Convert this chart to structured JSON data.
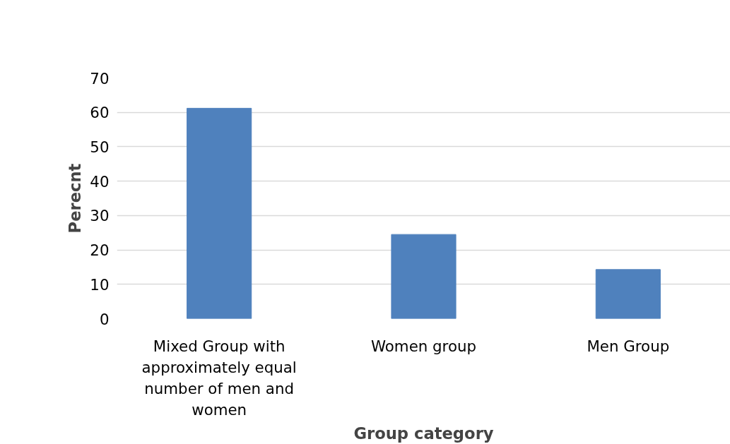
{
  "chart_data": {
    "type": "bar",
    "categories": [
      "Mixed Group with approximately equal number of men and women",
      "Women group",
      "Men Group"
    ],
    "values": [
      61.2,
      24.5,
      14.3
    ],
    "color": "#4f81bd",
    "xlabel": "Group category",
    "ylabel": "Perecnt",
    "ylim": [
      0,
      70
    ],
    "yticks": [
      0,
      10,
      20,
      30,
      40,
      50,
      60,
      70
    ],
    "grid": "y"
  }
}
